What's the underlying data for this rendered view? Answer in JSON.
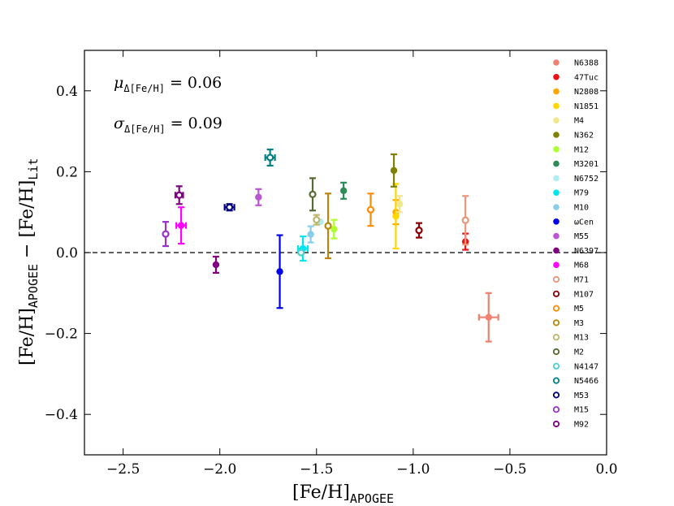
{
  "chart_data": {
    "type": "scatter",
    "xlim": [
      -2.7,
      0.0
    ],
    "ylim": [
      -0.5,
      0.5
    ],
    "x_ticks": [
      -2.5,
      -2.0,
      -1.5,
      -1.0,
      -0.5,
      0.0
    ],
    "x_tick_labels": [
      "−2.5",
      "−2.0",
      "−1.5",
      "−1.0",
      "−0.5",
      "0.0"
    ],
    "y_ticks": [
      -0.4,
      -0.2,
      0.0,
      0.2,
      0.4
    ],
    "y_tick_labels": [
      "−0.4",
      "−0.2",
      "0.0",
      "0.2",
      "0.4"
    ],
    "xlabel": {
      "main": "[Fe/H]",
      "sub": "APOGEE"
    },
    "ylabel": {
      "main1": "[Fe/H]",
      "sub1": "APOGEE",
      "minus": " − ",
      "main2": "[Fe/H]",
      "sub2": "Lit"
    },
    "reference_line_y": 0.0,
    "annotations": [
      {
        "symbol": "μ",
        "sub": "Δ[Fe/H]",
        "rest": " = 0.06"
      },
      {
        "symbol": "σ",
        "sub": "Δ[Fe/H]",
        "rest": " = 0.09"
      }
    ],
    "legend_position": "right",
    "series": [
      {
        "name": "N6388",
        "color": "#f08070",
        "marker": "filled",
        "x": -0.61,
        "y": -0.16,
        "xerr": 0.05,
        "yerr": 0.06
      },
      {
        "name": "47Tuc",
        "color": "#ee1111",
        "marker": "filled",
        "x": -0.73,
        "y": 0.027,
        "xerr": 0.0,
        "yerr": 0.02
      },
      {
        "name": "N2808",
        "color": "#ffa500",
        "marker": "filled",
        "x": -1.09,
        "y": 0.1,
        "xerr": 0.0,
        "yerr": 0.03
      },
      {
        "name": "N1851",
        "color": "#ffd700",
        "marker": "filled",
        "x": -1.09,
        "y": 0.09,
        "xerr": 0.0,
        "yerr": 0.08
      },
      {
        "name": "M4",
        "color": "#f0e68c",
        "marker": "filled",
        "x": -1.07,
        "y": 0.12,
        "xerr": 0.0,
        "yerr": 0.02
      },
      {
        "name": "N362",
        "color": "#808000",
        "marker": "filled",
        "x": -1.1,
        "y": 0.203,
        "xerr": 0.0,
        "yerr": 0.04
      },
      {
        "name": "M12",
        "color": "#adff2f",
        "marker": "filled",
        "x": -1.41,
        "y": 0.058,
        "xerr": 0.0,
        "yerr": 0.023
      },
      {
        "name": "M3201",
        "color": "#2e8b57",
        "marker": "filled",
        "x": -1.36,
        "y": 0.153,
        "xerr": 0.0,
        "yerr": 0.02
      },
      {
        "name": "N6752",
        "color": "#afeeee",
        "marker": "filled",
        "x": -1.48,
        "y": 0.076,
        "xerr": 0.0,
        "yerr": 0.0
      },
      {
        "name": "M79",
        "color": "#00e5ee",
        "marker": "filled",
        "x": -1.57,
        "y": 0.01,
        "xerr": 0.025,
        "yerr": 0.03
      },
      {
        "name": "M10",
        "color": "#87ceeb",
        "marker": "filled",
        "x": -1.53,
        "y": 0.045,
        "xerr": 0.0,
        "yerr": 0.02
      },
      {
        "name": "ωCen",
        "color": "#0000ee",
        "marker": "filled",
        "x": -1.69,
        "y": -0.047,
        "xerr": 0.0,
        "yerr": 0.09
      },
      {
        "name": "M55",
        "color": "#ba55d3",
        "marker": "filled",
        "x": -1.8,
        "y": 0.137,
        "xerr": 0.0,
        "yerr": 0.02
      },
      {
        "name": "N6397",
        "color": "#800080",
        "marker": "filled",
        "x": -2.02,
        "y": -0.03,
        "xerr": 0.0,
        "yerr": 0.02
      },
      {
        "name": "M68",
        "color": "#ff00ff",
        "marker": "filled",
        "x": -2.2,
        "y": 0.067,
        "xerr": 0.025,
        "yerr": 0.045
      },
      {
        "name": "M71",
        "color": "#e9967a",
        "marker": "open",
        "x": -0.73,
        "y": 0.08,
        "xerr": 0.0,
        "yerr": 0.06
      },
      {
        "name": "M107",
        "color": "#8b0000",
        "marker": "open",
        "x": -0.97,
        "y": 0.055,
        "xerr": 0.0,
        "yerr": 0.018
      },
      {
        "name": "M5",
        "color": "#ff8c00",
        "marker": "open",
        "x": -1.22,
        "y": 0.106,
        "xerr": 0.0,
        "yerr": 0.04
      },
      {
        "name": "M3",
        "color": "#b8860b",
        "marker": "open",
        "x": -1.44,
        "y": 0.066,
        "xerr": 0.0,
        "yerr": 0.08
      },
      {
        "name": "M13",
        "color": "#bdb76b",
        "marker": "open",
        "x": -1.5,
        "y": 0.081,
        "xerr": 0.0,
        "yerr": 0.012
      },
      {
        "name": "M2",
        "color": "#556b2f",
        "marker": "open",
        "x": -1.52,
        "y": 0.144,
        "xerr": 0.0,
        "yerr": 0.04
      },
      {
        "name": "N4147",
        "color": "#48d1cc",
        "marker": "open",
        "x": -1.58,
        "y": 0.0,
        "xerr": 0.0,
        "yerr": 0.0
      },
      {
        "name": "N5466",
        "color": "#008080",
        "marker": "open",
        "x": -1.74,
        "y": 0.235,
        "xerr": 0.025,
        "yerr": 0.02
      },
      {
        "name": "M53",
        "color": "#000080",
        "marker": "open",
        "x": -1.95,
        "y": 0.112,
        "xerr": 0.025,
        "yerr": 0.008
      },
      {
        "name": "M15",
        "color": "#9932cc",
        "marker": "open",
        "x": -2.28,
        "y": 0.046,
        "xerr": 0.0,
        "yerr": 0.03
      },
      {
        "name": "M92",
        "color": "#800080",
        "marker": "open",
        "x": -2.21,
        "y": 0.142,
        "xerr": 0.02,
        "yerr": 0.022
      }
    ]
  }
}
